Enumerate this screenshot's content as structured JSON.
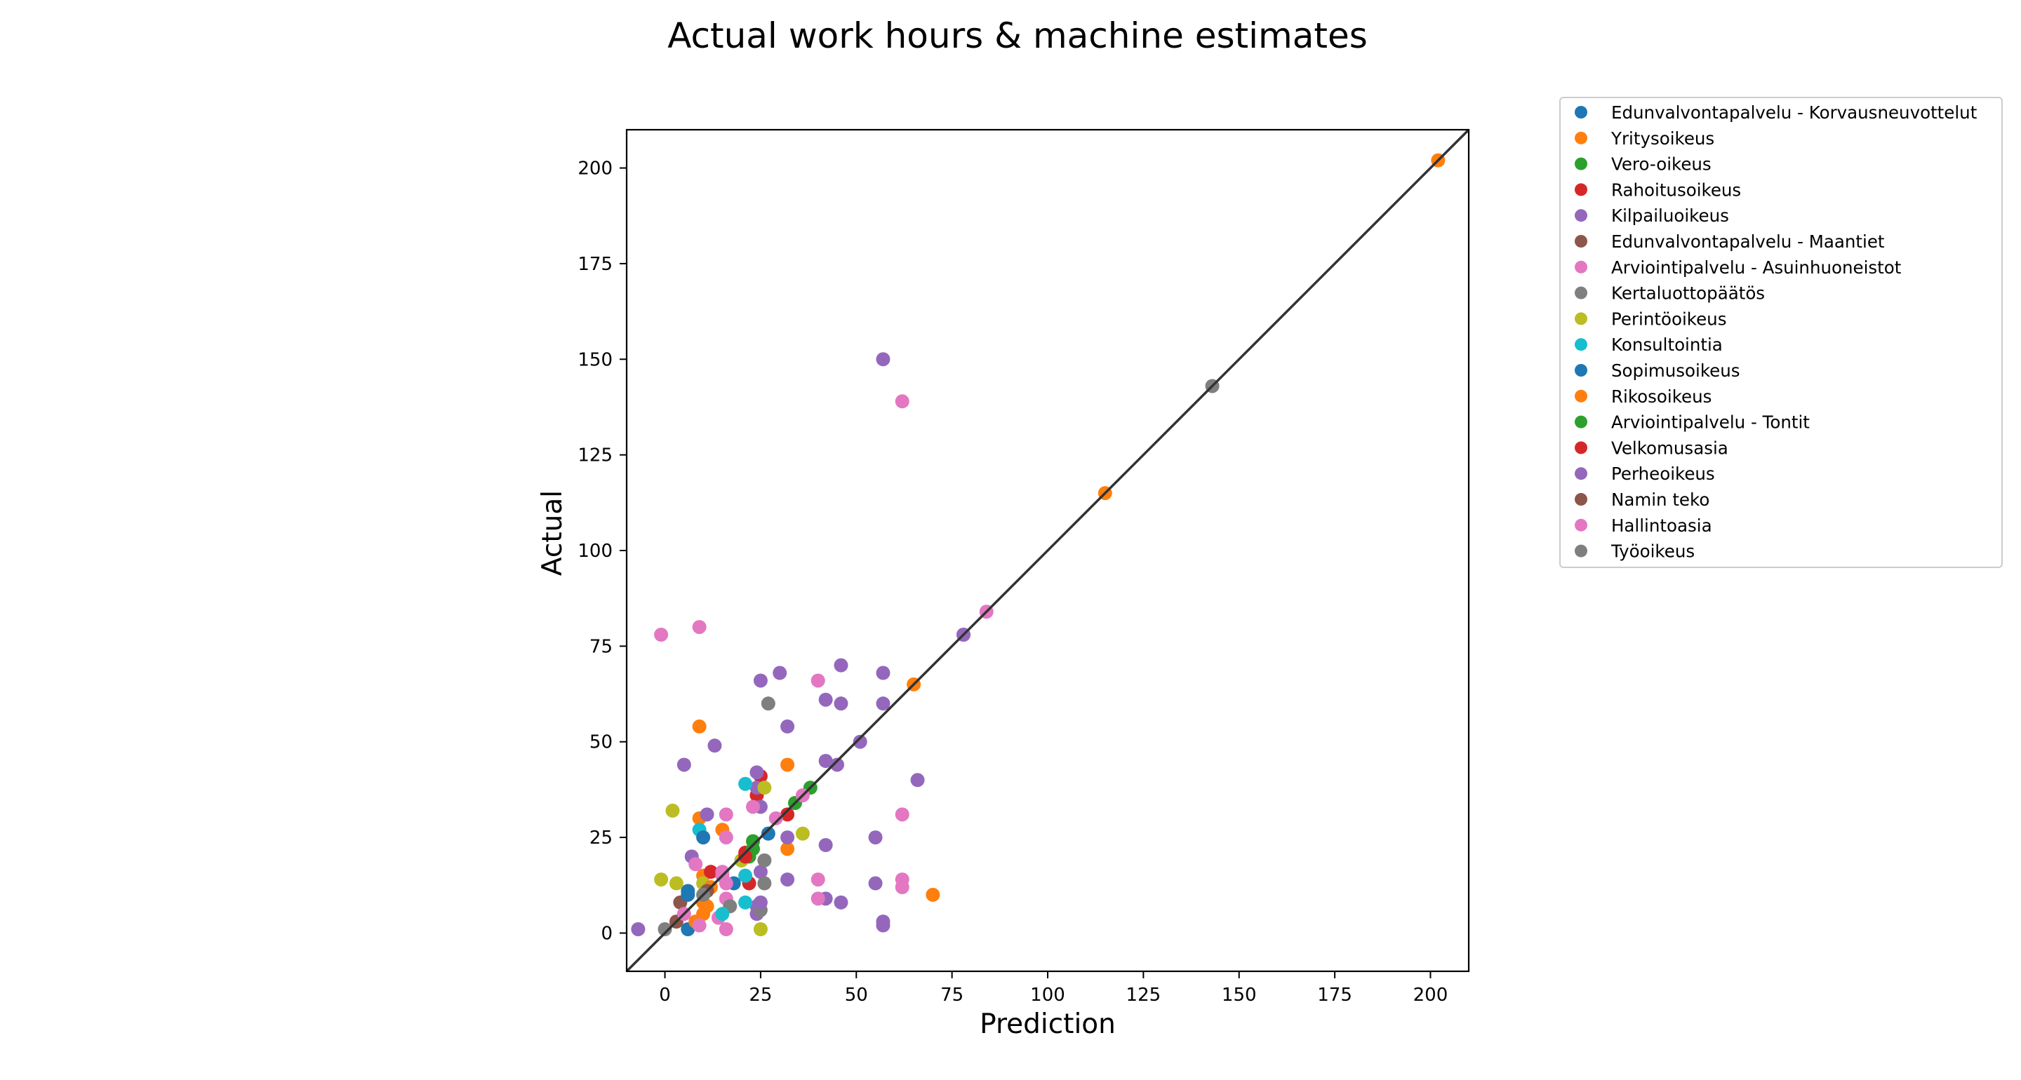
{
  "chart_data": {
    "type": "scatter",
    "title": "Actual work hours & machine estimates",
    "xlabel": "Prediction",
    "ylabel": "Actual",
    "xlim": [
      -10,
      210
    ],
    "ylim": [
      -10,
      210
    ],
    "xticks": [
      "0",
      "25",
      "50",
      "75",
      "100",
      "125",
      "150",
      "175",
      "200"
    ],
    "yticks": [
      "0",
      "25",
      "50",
      "75",
      "100",
      "125",
      "150",
      "175",
      "200"
    ],
    "reference_line": "y = x",
    "legend_position": "outside-top-right",
    "grid": false,
    "series": [
      {
        "name": "Edunvalvontapalvelu - Korvausneuvottelut",
        "color": "#1f77b4",
        "points": [
          [
            6,
            11
          ],
          [
            6,
            1
          ]
        ]
      },
      {
        "name": "Yritysoikeus",
        "color": "#ff7f0e",
        "points": [
          [
            202,
            202
          ],
          [
            115,
            115
          ],
          [
            65,
            65
          ],
          [
            9,
            54
          ],
          [
            32,
            44
          ],
          [
            15,
            27
          ],
          [
            32,
            22
          ],
          [
            9,
            30
          ],
          [
            70,
            10
          ],
          [
            10,
            15
          ],
          [
            10,
            5
          ],
          [
            11,
            7
          ],
          [
            8,
            3
          ]
        ]
      },
      {
        "name": "Vero-oikeus",
        "color": "#2ca02c",
        "points": [
          [
            38,
            38
          ],
          [
            34,
            34
          ],
          [
            23,
            24
          ],
          [
            20,
            19
          ],
          [
            22,
            20
          ]
        ]
      },
      {
        "name": "Rahoitusoikeus",
        "color": "#d62728",
        "points": [
          [
            25,
            41
          ],
          [
            24,
            36
          ],
          [
            32,
            31
          ],
          [
            21,
            21
          ],
          [
            22,
            13
          ],
          [
            12,
            16
          ]
        ]
      },
      {
        "name": "Kilpailuoikeus",
        "color": "#9467bd",
        "points": [
          [
            57,
            150
          ],
          [
            78,
            78
          ],
          [
            46,
            70
          ],
          [
            30,
            68
          ],
          [
            57,
            68
          ],
          [
            25,
            66
          ],
          [
            42,
            61
          ],
          [
            46,
            60
          ],
          [
            57,
            60
          ],
          [
            32,
            54
          ],
          [
            51,
            50
          ],
          [
            13,
            49
          ],
          [
            5,
            44
          ],
          [
            42,
            45
          ],
          [
            45,
            44
          ],
          [
            66,
            40
          ],
          [
            24,
            42
          ],
          [
            24,
            38
          ],
          [
            25,
            33
          ],
          [
            11,
            31
          ],
          [
            32,
            25
          ],
          [
            55,
            25
          ],
          [
            42,
            23
          ],
          [
            7,
            20
          ],
          [
            25,
            16
          ],
          [
            32,
            14
          ],
          [
            55,
            13
          ],
          [
            42,
            9
          ],
          [
            46,
            8
          ],
          [
            24,
            7
          ],
          [
            57,
            3
          ],
          [
            57,
            2
          ],
          [
            -7,
            1
          ],
          [
            24,
            5
          ]
        ]
      },
      {
        "name": "Edunvalvontapalvelu - Maantiet",
        "color": "#8c564b",
        "points": [
          [
            4,
            8
          ],
          [
            3,
            3
          ]
        ]
      },
      {
        "name": "Arviointipalvelu - Asuinhuoneistot",
        "color": "#e377c2",
        "points": [
          [
            62,
            139
          ],
          [
            84,
            84
          ],
          [
            -1,
            78
          ],
          [
            9,
            80
          ],
          [
            40,
            66
          ],
          [
            36,
            36
          ],
          [
            16,
            31
          ],
          [
            62,
            31
          ],
          [
            16,
            25
          ],
          [
            23,
            33
          ],
          [
            29,
            30
          ],
          [
            8,
            18
          ],
          [
            15,
            16
          ],
          [
            40,
            14
          ],
          [
            62,
            14
          ],
          [
            62,
            12
          ],
          [
            40,
            9
          ],
          [
            16,
            9
          ],
          [
            5,
            5
          ],
          [
            9,
            2
          ],
          [
            16,
            1
          ],
          [
            14,
            4
          ]
        ]
      },
      {
        "name": "Kertaluottopäätös",
        "color": "#7f7f7f",
        "points": [
          [
            143,
            143
          ],
          [
            27,
            60
          ],
          [
            26,
            19
          ],
          [
            26,
            13
          ],
          [
            25,
            6
          ],
          [
            0,
            1
          ],
          [
            17,
            7
          ]
        ]
      },
      {
        "name": "Perintöoikeus",
        "color": "#bcbd22",
        "points": [
          [
            2,
            32
          ],
          [
            26,
            38
          ],
          [
            36,
            26
          ],
          [
            20,
            19
          ],
          [
            -1,
            14
          ],
          [
            3,
            13
          ],
          [
            25,
            1
          ],
          [
            10,
            13
          ]
        ]
      },
      {
        "name": "Konsultointia",
        "color": "#17becf",
        "points": [
          [
            21,
            39
          ],
          [
            9,
            27
          ],
          [
            21,
            15
          ],
          [
            21,
            8
          ],
          [
            15,
            5
          ]
        ]
      },
      {
        "name": "Sopimusoikeus",
        "color": "#1f77b4",
        "points": [
          [
            27,
            26
          ],
          [
            10,
            25
          ],
          [
            18,
            13
          ],
          [
            6,
            10
          ]
        ]
      },
      {
        "name": "Rikosoikeus",
        "color": "#ff7f0e",
        "points": [
          [
            12,
            12
          ],
          [
            10,
            8
          ]
        ]
      },
      {
        "name": "Arviointipalvelu - Tontit",
        "color": "#2ca02c",
        "points": [
          [
            23,
            22
          ]
        ]
      },
      {
        "name": "Velkomusasia",
        "color": "#d62728",
        "points": [
          [
            21,
            20
          ]
        ]
      },
      {
        "name": "Perheoikeus",
        "color": "#9467bd",
        "points": [
          [
            78,
            78
          ],
          [
            25,
            8
          ]
        ]
      },
      {
        "name": "Namin teko",
        "color": "#8c564b",
        "points": [
          [
            11,
            11
          ]
        ]
      },
      {
        "name": "Hallintoasia",
        "color": "#e377c2",
        "points": [
          [
            15,
            15
          ],
          [
            16,
            13
          ]
        ]
      },
      {
        "name": "Työoikeus",
        "color": "#7f7f7f",
        "points": [
          [
            10,
            10
          ]
        ]
      }
    ]
  }
}
